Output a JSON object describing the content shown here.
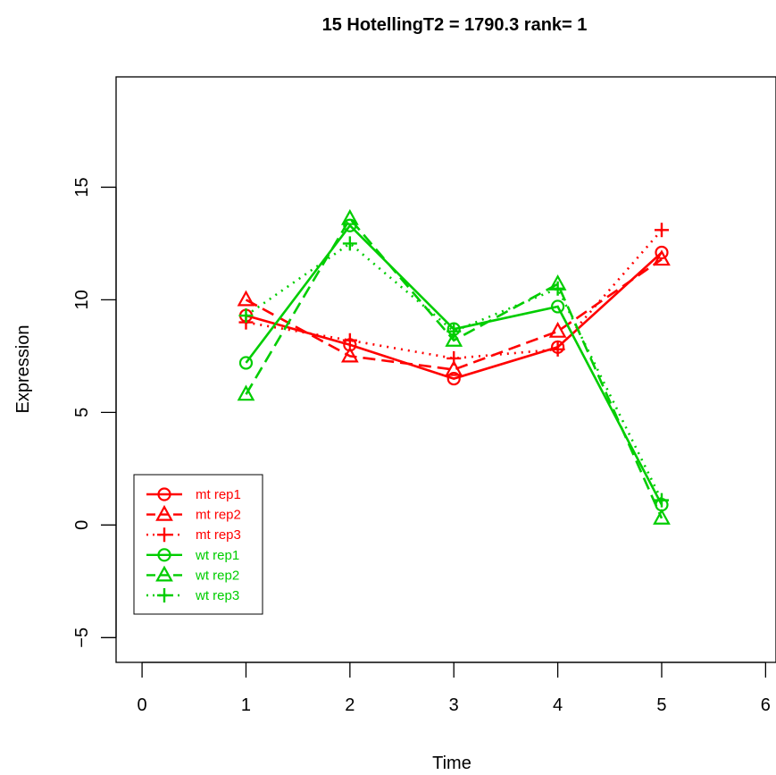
{
  "chart_data": {
    "type": "line",
    "title": "15  HotellingT2 = 1790.3  rank= 1",
    "xlabel": "Time",
    "ylabel": "Expression",
    "xlim": [
      -0.25,
      6.1
    ],
    "ylim": [
      -6.1,
      19.9
    ],
    "xticks": [
      0,
      1,
      2,
      3,
      4,
      5,
      6
    ],
    "yticks": [
      -5,
      0,
      5,
      10,
      15
    ],
    "x": [
      1,
      2,
      3,
      4,
      5
    ],
    "grid": false,
    "legend_position": "bottom-left",
    "series": [
      {
        "name": "mt rep1",
        "values": [
          9.3,
          8.0,
          6.5,
          7.9,
          12.1
        ],
        "color": "#ff0000",
        "linestyle": "solid",
        "marker": "circle"
      },
      {
        "name": "mt rep2",
        "values": [
          10.0,
          7.5,
          6.9,
          8.6,
          11.8
        ],
        "color": "#ff0000",
        "linestyle": "dashed",
        "marker": "triangle"
      },
      {
        "name": "mt rep3",
        "values": [
          9.0,
          8.2,
          7.4,
          7.8,
          13.1
        ],
        "color": "#ff0000",
        "linestyle": "dotted",
        "marker": "plus"
      },
      {
        "name": "wt rep1",
        "values": [
          7.2,
          13.3,
          8.7,
          9.7,
          0.9
        ],
        "color": "#00cd00",
        "linestyle": "solid",
        "marker": "circle"
      },
      {
        "name": "wt rep2",
        "values": [
          5.8,
          13.6,
          8.2,
          10.7,
          0.3
        ],
        "color": "#00cd00",
        "linestyle": "dashed",
        "marker": "triangle"
      },
      {
        "name": "wt rep3",
        "values": [
          9.3,
          12.5,
          8.6,
          10.5,
          1.1
        ],
        "color": "#00cd00",
        "linestyle": "dotted",
        "marker": "plus"
      }
    ]
  }
}
